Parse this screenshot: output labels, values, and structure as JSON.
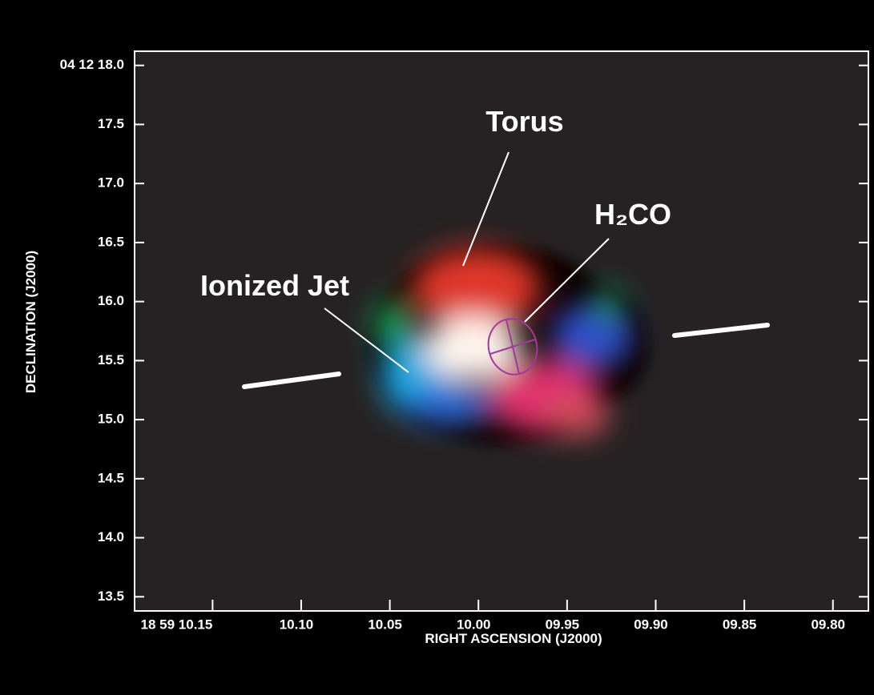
{
  "chart_data": {
    "type": "image",
    "xlabel": "RIGHT ASCENSION (J2000)",
    "ylabel": "DECLINATION (J2000)",
    "annotations": [
      "Torus",
      "H₂CO",
      "Ionized Jet"
    ],
    "xlim": [
      10.194,
      9.78
    ],
    "xticks": [
      {
        "value": 10.15,
        "label": "18 59 10.15"
      },
      {
        "value": 10.1,
        "label": "10.10"
      },
      {
        "value": 10.05,
        "label": "10.05"
      },
      {
        "value": 10.0,
        "label": "10.00"
      },
      {
        "value": 9.95,
        "label": "09.95"
      },
      {
        "value": 9.9,
        "label": "09.90"
      },
      {
        "value": 9.85,
        "label": "09.85"
      },
      {
        "value": 9.8,
        "label": "09.80"
      }
    ],
    "ylim": [
      13.38,
      18.12
    ],
    "yticks": [
      {
        "value": 18.0,
        "label": "04 12 18.0"
      },
      17.5,
      {
        "value": 17.0,
        "label": "17.0"
      },
      16.5,
      {
        "value": 16.0,
        "label": "16.0"
      },
      15.5,
      {
        "value": 15.0,
        "label": "15.0"
      },
      14.5,
      {
        "value": 14.0,
        "label": "14.0"
      },
      13.5
    ]
  }
}
